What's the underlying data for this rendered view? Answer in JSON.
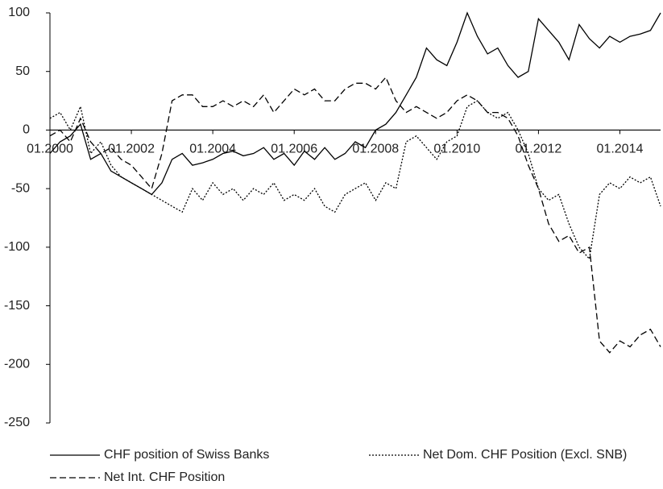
{
  "chart_data": {
    "type": "line",
    "x": [
      2000,
      2000.25,
      2000.5,
      2000.75,
      2001,
      2001.25,
      2001.5,
      2001.75,
      2002,
      2002.25,
      2002.5,
      2002.75,
      2003,
      2003.25,
      2003.5,
      2003.75,
      2004,
      2004.25,
      2004.5,
      2004.75,
      2005,
      2005.25,
      2005.5,
      2005.75,
      2006,
      2006.25,
      2006.5,
      2006.75,
      2007,
      2007.25,
      2007.5,
      2007.75,
      2008,
      2008.25,
      2008.5,
      2008.75,
      2009,
      2009.25,
      2009.5,
      2009.75,
      2010,
      2010.25,
      2010.5,
      2010.75,
      2011,
      2011.25,
      2011.5,
      2011.75,
      2012,
      2012.25,
      2012.5,
      2012.75,
      2013,
      2013.25,
      2013.5,
      2013.75,
      2014,
      2014.25,
      2014.5,
      2014.75,
      2015
    ],
    "series": [
      {
        "name": "CHF position of Swiss Banks",
        "color": "#000000",
        "dash": "none",
        "values": [
          -20,
          -10,
          -5,
          5,
          -25,
          -20,
          -35,
          -40,
          -45,
          -50,
          -55,
          -45,
          -25,
          -20,
          -30,
          -28,
          -25,
          -20,
          -18,
          -22,
          -20,
          -15,
          -25,
          -20,
          -30,
          -18,
          -25,
          -15,
          -25,
          -20,
          -10,
          -15,
          0,
          5,
          15,
          30,
          45,
          70,
          60,
          55,
          75,
          100,
          80,
          65,
          70,
          55,
          45,
          50,
          95,
          85,
          75,
          60,
          90,
          78,
          70,
          80,
          75,
          80,
          82,
          85,
          100
        ]
      },
      {
        "name": "Net Dom. CHF Position (Excl. SNB)",
        "color": "#000000",
        "dash": "2,2",
        "values": [
          10,
          15,
          0,
          20,
          -20,
          -10,
          -30,
          -40,
          -45,
          -50,
          -55,
          -60,
          -65,
          -70,
          -50,
          -60,
          -45,
          -55,
          -50,
          -60,
          -50,
          -55,
          -45,
          -60,
          -55,
          -60,
          -50,
          -65,
          -70,
          -55,
          -50,
          -45,
          -60,
          -45,
          -50,
          -10,
          -5,
          -15,
          -25,
          -10,
          -5,
          20,
          25,
          15,
          10,
          15,
          0,
          -20,
          -50,
          -60,
          -55,
          -80,
          -100,
          -110,
          -55,
          -45,
          -50,
          -40,
          -45,
          -40,
          -65
        ]
      },
      {
        "name": "Net Int. CHF Position",
        "color": "#000000",
        "dash": "8,4",
        "values": [
          -5,
          0,
          -10,
          10,
          -10,
          -20,
          -15,
          -25,
          -30,
          -40,
          -50,
          -20,
          25,
          30,
          30,
          20,
          20,
          25,
          20,
          25,
          20,
          30,
          15,
          25,
          35,
          30,
          35,
          25,
          25,
          35,
          40,
          40,
          35,
          45,
          25,
          15,
          20,
          15,
          10,
          15,
          25,
          30,
          25,
          15,
          15,
          10,
          -5,
          -30,
          -50,
          -80,
          -95,
          -90,
          -105,
          -100,
          -180,
          -190,
          -180,
          -185,
          -175,
          -170,
          -185
        ]
      }
    ],
    "xlim": [
      2000,
      2015
    ],
    "xticks": [
      {
        "value": 2000,
        "label": "01.2000"
      },
      {
        "value": 2002,
        "label": "01.2002"
      },
      {
        "value": 2004,
        "label": "01.2004"
      },
      {
        "value": 2006,
        "label": "01.2006"
      },
      {
        "value": 2008,
        "label": "01.2008"
      },
      {
        "value": 2010,
        "label": "01.2010"
      },
      {
        "value": 2012,
        "label": "01.2012"
      },
      {
        "value": 2014,
        "label": "01.2014"
      }
    ],
    "ylim": [
      -250,
      100
    ],
    "yticks": [
      -250,
      -200,
      -150,
      -100,
      -50,
      0,
      50,
      100
    ]
  }
}
